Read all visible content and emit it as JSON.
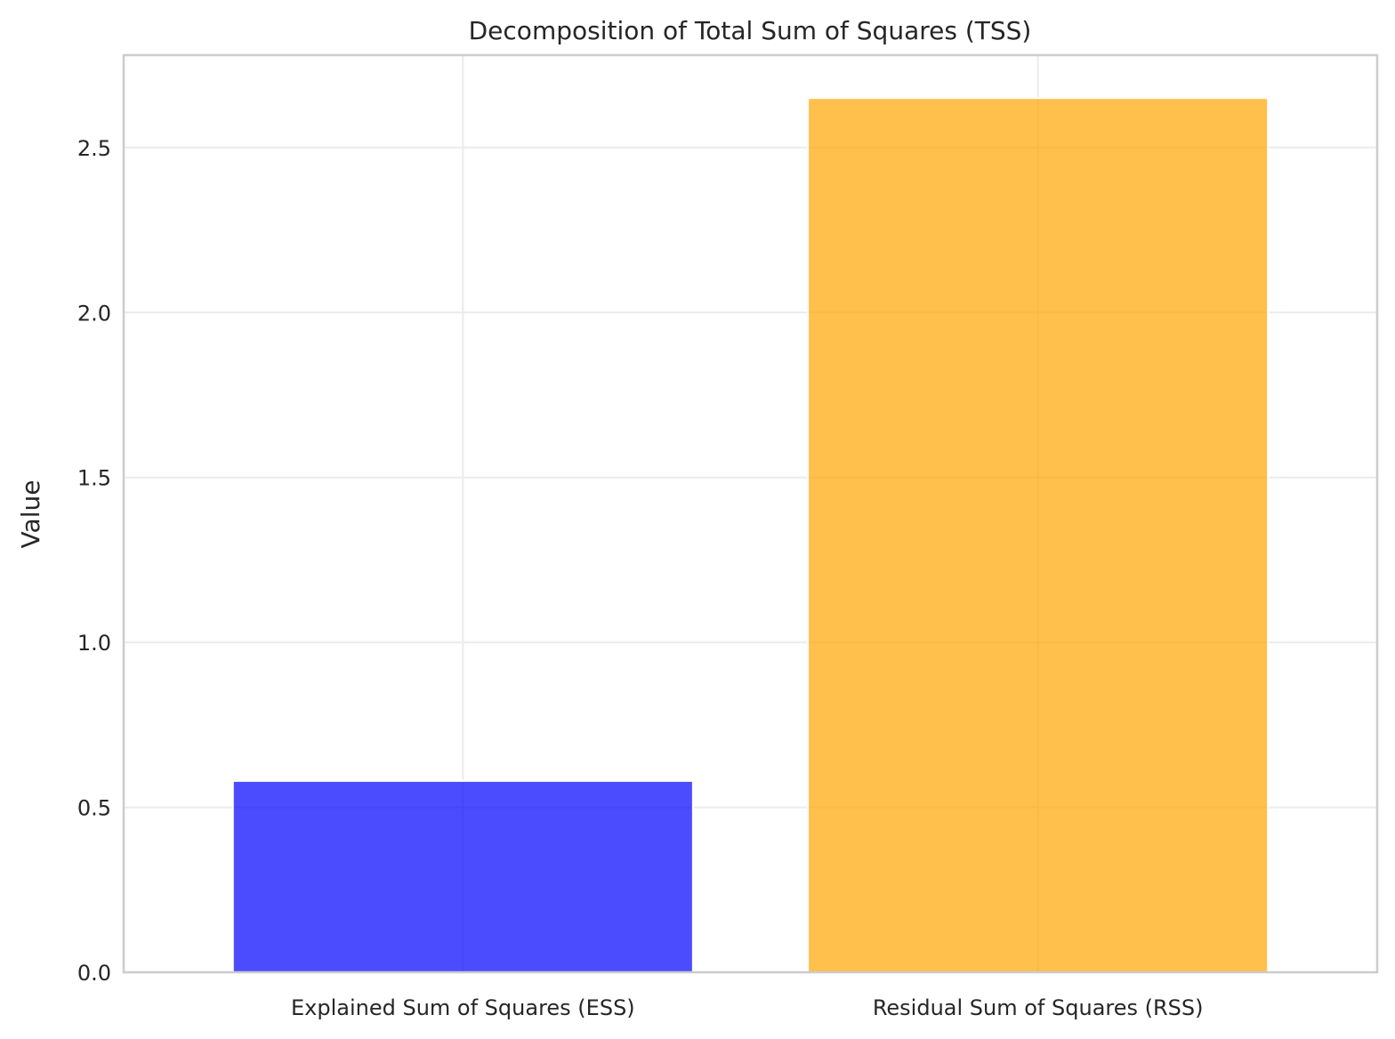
{
  "chart_data": {
    "type": "bar",
    "title": "Decomposition of Total Sum of Squares (TSS)",
    "xlabel": "",
    "ylabel": "Value",
    "categories": [
      "Explained Sum of Squares (ESS)",
      "Residual Sum of Squares (RSS)"
    ],
    "values": [
      0.58,
      2.65
    ],
    "colors": [
      "#0000ff",
      "#ffa500"
    ],
    "bar_opacity": 0.7,
    "ylim": [
      0,
      2.78
    ],
    "yticks": [
      0.0,
      0.5,
      1.0,
      1.5,
      2.0,
      2.5
    ],
    "ytick_labels": [
      "0.0",
      "0.5",
      "1.0",
      "1.5",
      "2.0",
      "2.5"
    ],
    "grid": true,
    "legend": "none"
  }
}
